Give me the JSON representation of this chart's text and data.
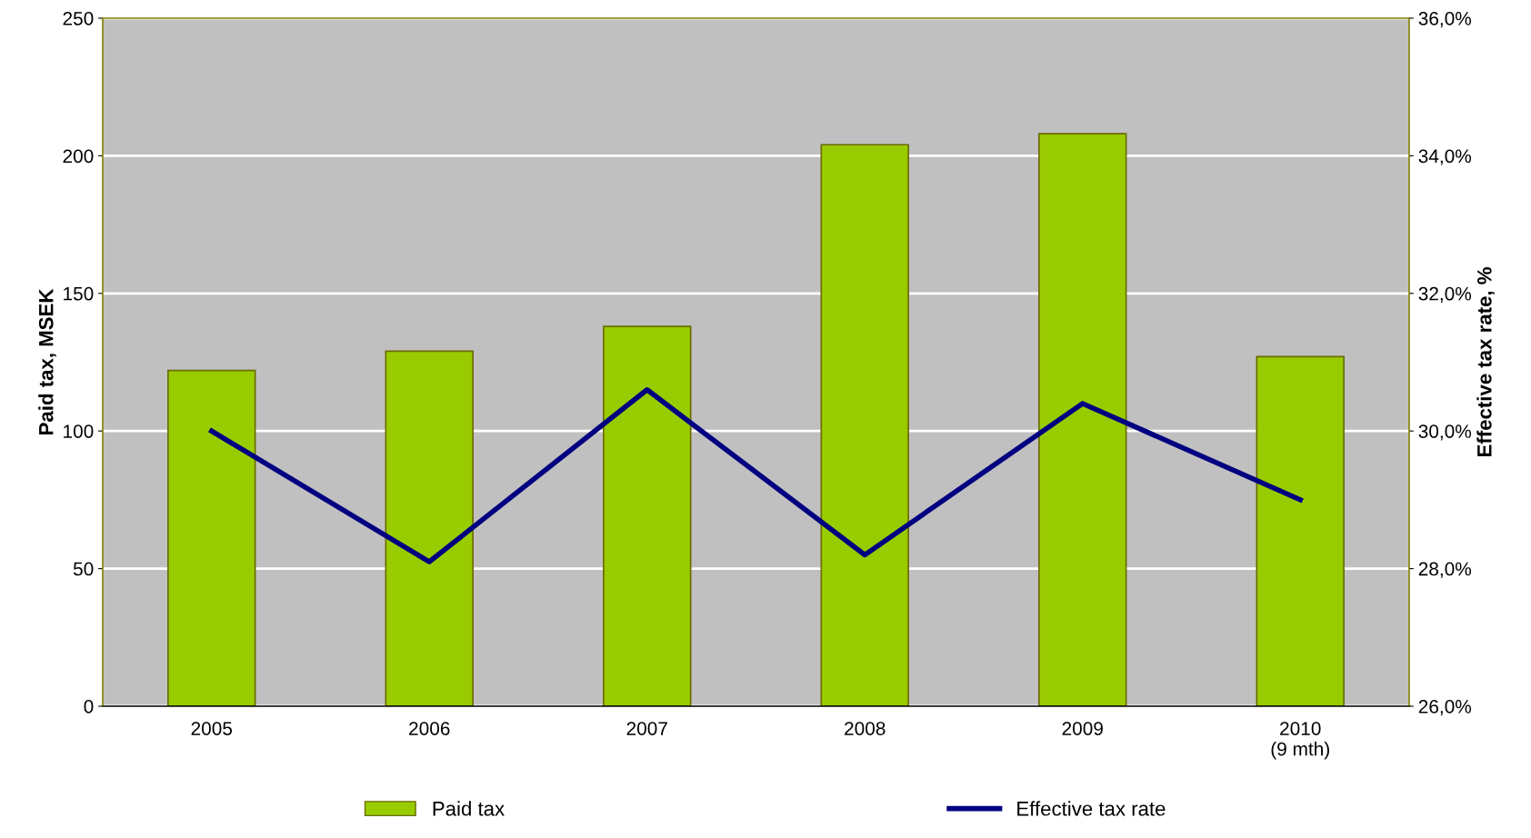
{
  "chart_data": {
    "type": "bar",
    "categories": [
      "2005",
      "2006",
      "2007",
      "2008",
      "2009",
      "2010\n(9 mth)"
    ],
    "ylabel": "Paid tax, MSEK",
    "y2label": "Effective tax rate, %",
    "ylim": [
      0,
      250
    ],
    "yticks": [
      0,
      50,
      100,
      150,
      200,
      250
    ],
    "y2lim": [
      26,
      36
    ],
    "y2ticks": [
      {
        "value": 26,
        "label": "26,0%"
      },
      {
        "value": 28,
        "label": "28,0%"
      },
      {
        "value": 30,
        "label": "30,0%"
      },
      {
        "value": 32,
        "label": "32,0%"
      },
      {
        "value": 34,
        "label": "34,0%"
      },
      {
        "value": 36,
        "label": "36,0%"
      }
    ],
    "grid": "y",
    "legend": "bottom",
    "series": [
      {
        "name": "Paid tax",
        "color": "#99cc00",
        "values": [
          122,
          129,
          138,
          204,
          208,
          127
        ]
      },
      {
        "name": "Effective tax rate",
        "type": "line",
        "axis": "y2",
        "color": "#000080",
        "values": [
          30.0,
          28.1,
          30.6,
          28.2,
          30.4,
          29.0
        ]
      }
    ]
  }
}
